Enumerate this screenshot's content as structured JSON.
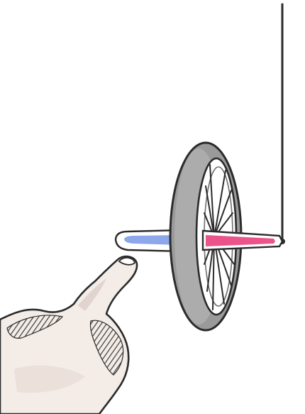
{
  "scene": {
    "objects": [
      "suspension-string",
      "bicycle-wheel",
      "axle",
      "finger"
    ]
  },
  "colors": {
    "outline": "#2b2b2b",
    "tire": "#9a9a9a",
    "tire_shadow": "#6f6f6f",
    "axle_blue": "#7f9ee8",
    "axle_pink": "#e8417e",
    "skin": "#f3ece7",
    "skin_shade": "#d9c9c2",
    "hatch": "#3a3a3a"
  }
}
